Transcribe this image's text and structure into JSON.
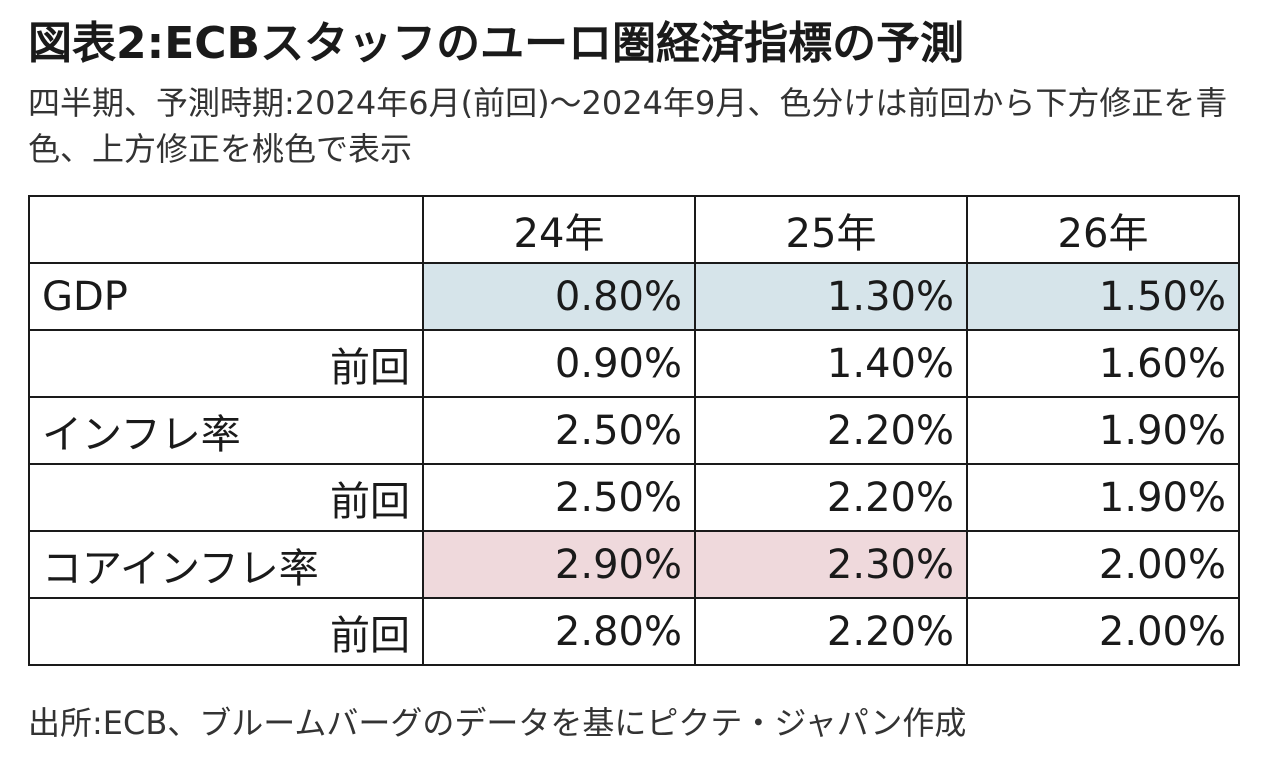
{
  "title": "図表2:ECBスタッフのユーロ圏経済指標の予測",
  "subtitle": "四半期、予測時期:2024年6月(前回)～2024年9月、色分けは前回から下方修正を青色、上方修正を桃色で表示",
  "source": "出所:ECB、ブルームバーグのデータを基にピクテ・ジャパン作成",
  "colors": {
    "downward_revision": "#d6e4ea",
    "upward_revision": "#efd9dc"
  },
  "chart_data": {
    "type": "table",
    "columns": [
      "",
      "24年",
      "25年",
      "26年"
    ],
    "rows": [
      {
        "label": "GDP",
        "sub": false,
        "values": [
          "0.80%",
          "1.30%",
          "1.50%"
        ],
        "revision": [
          "down",
          "down",
          "down"
        ]
      },
      {
        "label": "前回",
        "sub": true,
        "values": [
          "0.90%",
          "1.40%",
          "1.60%"
        ],
        "revision": [
          "",
          "",
          ""
        ]
      },
      {
        "label": "インフレ率",
        "sub": false,
        "values": [
          "2.50%",
          "2.20%",
          "1.90%"
        ],
        "revision": [
          "",
          "",
          ""
        ]
      },
      {
        "label": "前回",
        "sub": true,
        "values": [
          "2.50%",
          "2.20%",
          "1.90%"
        ],
        "revision": [
          "",
          "",
          ""
        ]
      },
      {
        "label": "コアインフレ率",
        "sub": false,
        "values": [
          "2.90%",
          "2.30%",
          "2.00%"
        ],
        "revision": [
          "up",
          "up",
          ""
        ]
      },
      {
        "label": "前回",
        "sub": true,
        "values": [
          "2.80%",
          "2.20%",
          "2.00%"
        ],
        "revision": [
          "",
          "",
          ""
        ]
      }
    ]
  }
}
